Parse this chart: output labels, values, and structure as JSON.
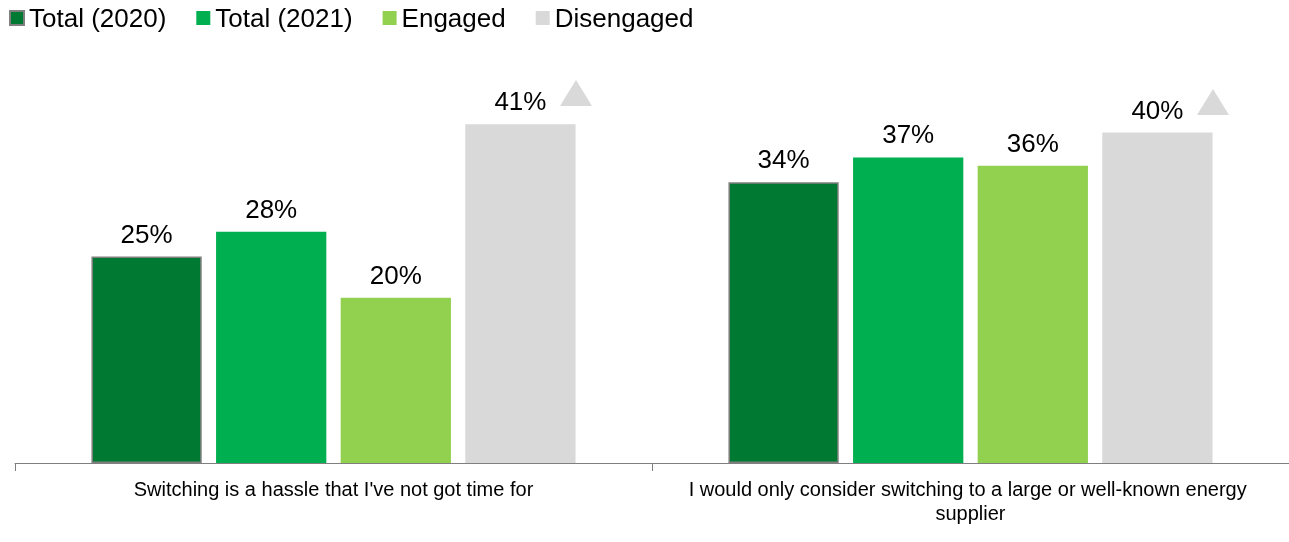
{
  "chart_data": {
    "type": "bar",
    "categories": [
      "Switching is a hassle that I've not got time for",
      "I would only consider switching to a large or well-known energy supplier"
    ],
    "series": [
      {
        "name": "Total (2020)",
        "color": "#007a33",
        "values": [
          25,
          34
        ],
        "value_labels": [
          "25%",
          "34%"
        ]
      },
      {
        "name": "Total (2021)",
        "color": "#00b050",
        "values": [
          28,
          37
        ],
        "value_labels": [
          "28%",
          "37%"
        ]
      },
      {
        "name": "Engaged",
        "color": "#92d050",
        "values": [
          20,
          36
        ],
        "value_labels": [
          "20%",
          "36%"
        ]
      },
      {
        "name": "Disengaged",
        "color": "#d9d9d9",
        "values": [
          41,
          40
        ],
        "value_labels": [
          "41%",
          "40%"
        ]
      }
    ],
    "legend": "top left"
  }
}
